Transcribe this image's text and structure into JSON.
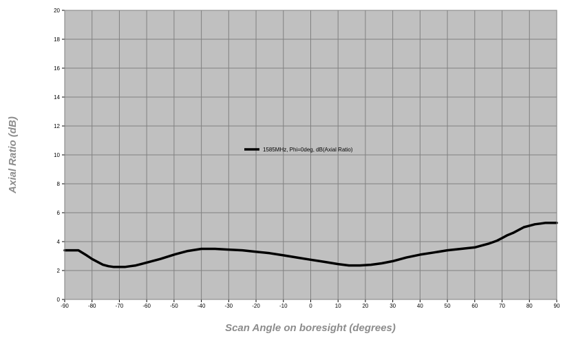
{
  "chart_data": {
    "type": "line",
    "title": "",
    "xlabel": "Scan Angle on boresight (degrees)",
    "ylabel": "Axial Ratio (dB)",
    "xlim": [
      -90,
      90
    ],
    "ylim": [
      0,
      20
    ],
    "xticks": [
      -90,
      -80,
      -70,
      -60,
      -50,
      -40,
      -30,
      -20,
      -10,
      0,
      10,
      20,
      30,
      40,
      50,
      60,
      70,
      80,
      90
    ],
    "yticks": [
      0,
      2,
      4,
      6,
      8,
      10,
      12,
      14,
      16,
      18,
      20
    ],
    "grid": true,
    "plot_background": "#c0c0c0",
    "grid_color": "#808080",
    "legend_position": "center",
    "series": [
      {
        "name": "1585MHz, Phi=0deg, dB(Axial Ratio)",
        "color": "#000000",
        "x": [
          -90,
          -85,
          -82,
          -80,
          -78,
          -76,
          -74,
          -72,
          -70,
          -68,
          -66,
          -64,
          -62,
          -60,
          -55,
          -50,
          -45,
          -40,
          -38,
          -35,
          -30,
          -25,
          -20,
          -15,
          -10,
          -5,
          0,
          5,
          10,
          14,
          18,
          22,
          26,
          30,
          35,
          40,
          45,
          50,
          55,
          60,
          65,
          68,
          70,
          72,
          74,
          76,
          78,
          80,
          82,
          84,
          86,
          88,
          90
        ],
        "values": [
          3.4,
          3.4,
          3.05,
          2.8,
          2.6,
          2.4,
          2.3,
          2.25,
          2.25,
          2.25,
          2.3,
          2.35,
          2.45,
          2.55,
          2.8,
          3.1,
          3.35,
          3.5,
          3.5,
          3.5,
          3.45,
          3.4,
          3.3,
          3.2,
          3.05,
          2.9,
          2.75,
          2.6,
          2.45,
          2.35,
          2.35,
          2.4,
          2.5,
          2.65,
          2.9,
          3.1,
          3.25,
          3.4,
          3.5,
          3.6,
          3.85,
          4.05,
          4.25,
          4.45,
          4.6,
          4.8,
          5.0,
          5.1,
          5.2,
          5.25,
          5.3,
          5.3,
          5.3
        ]
      }
    ]
  }
}
